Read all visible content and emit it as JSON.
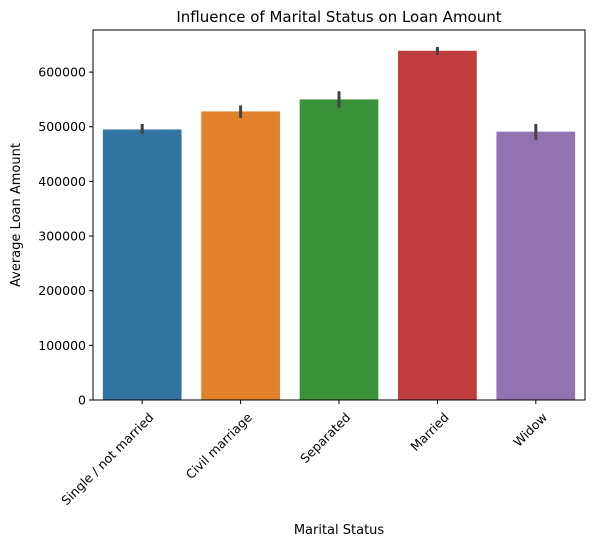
{
  "chart_data": {
    "type": "bar",
    "title": "Influence of Marital Status on Loan Amount",
    "xlabel": "Marital Status",
    "ylabel": "Average Loan Amount",
    "categories": [
      "Single / not married",
      "Civil marriage",
      "Separated",
      "Married",
      "Widow"
    ],
    "values": [
      495000,
      528000,
      550000,
      639000,
      491000
    ],
    "error_low": [
      487000,
      516000,
      535000,
      632000,
      476000
    ],
    "error_high": [
      505000,
      539000,
      565000,
      646000,
      505000
    ],
    "colors": [
      "#3274a1",
      "#e1812c",
      "#3a923a",
      "#c03d3e",
      "#9372b2"
    ],
    "yticks": [
      0,
      100000,
      200000,
      300000,
      400000,
      500000,
      600000
    ],
    "ytick_labels": [
      "0",
      "100000",
      "200000",
      "300000",
      "400000",
      "500000",
      "600000"
    ],
    "ylim": [
      0,
      677000
    ],
    "grid": false,
    "legend": "none"
  }
}
